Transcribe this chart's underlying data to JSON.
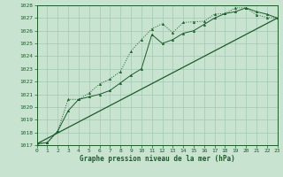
{
  "xlabel": "Graphe pression niveau de la mer (hPa)",
  "ylim": [
    1017,
    1028
  ],
  "xlim": [
    0,
    23
  ],
  "yticks": [
    1017,
    1018,
    1019,
    1020,
    1021,
    1022,
    1023,
    1024,
    1025,
    1026,
    1027,
    1028
  ],
  "xticks": [
    0,
    1,
    2,
    3,
    4,
    5,
    6,
    7,
    8,
    9,
    10,
    11,
    12,
    13,
    14,
    15,
    16,
    17,
    18,
    19,
    20,
    21,
    22,
    23
  ],
  "bg_color": "#c8e4d0",
  "grid_color": "#a0c8b0",
  "line_color": "#1a5c28",
  "line1_x": [
    0,
    1,
    2,
    3,
    4,
    5,
    6,
    7,
    8,
    9,
    10,
    11,
    12,
    13,
    14,
    15,
    16,
    17,
    18,
    19,
    20,
    21,
    22,
    23
  ],
  "line1_y": [
    1017.1,
    1017.2,
    1018.1,
    1020.6,
    1020.6,
    1021.1,
    1021.8,
    1022.2,
    1022.8,
    1024.4,
    1025.3,
    1026.15,
    1026.55,
    1025.85,
    1026.65,
    1026.7,
    1026.75,
    1027.3,
    1027.35,
    1027.8,
    1027.8,
    1027.25,
    1027.05,
    1027.0
  ],
  "line2_x": [
    0,
    1,
    2,
    3,
    4,
    5,
    6,
    7,
    8,
    9,
    10,
    11,
    12,
    13,
    14,
    15,
    16,
    17,
    18,
    19,
    20,
    21,
    22,
    23
  ],
  "line2_y": [
    1017.1,
    1017.2,
    1018.1,
    1019.7,
    1020.6,
    1020.8,
    1021.0,
    1021.3,
    1021.9,
    1022.5,
    1023.0,
    1025.7,
    1025.0,
    1025.3,
    1025.8,
    1026.0,
    1026.5,
    1027.0,
    1027.35,
    1027.5,
    1027.8,
    1027.5,
    1027.3,
    1027.0
  ],
  "line3_x": [
    0,
    23
  ],
  "line3_y": [
    1017.1,
    1027.0
  ]
}
